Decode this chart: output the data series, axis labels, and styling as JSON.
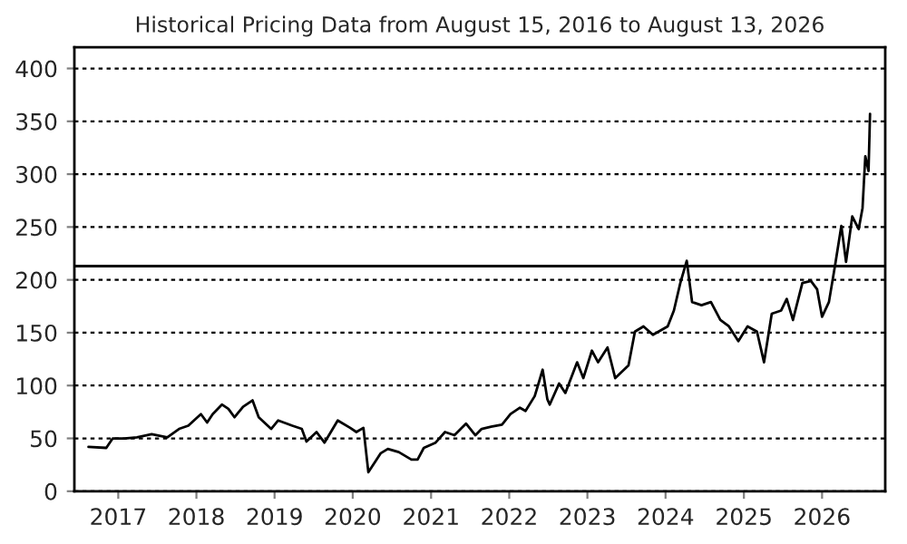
{
  "chart_data": {
    "type": "line",
    "title": "Historical Pricing Data from August 15, 2016 to August 13, 2026",
    "x": [
      "2016-08-15",
      "2016-11-06",
      "2016-12-06",
      "2017-01-30",
      "2017-03-29",
      "2017-06-06",
      "2017-08-18",
      "2017-10-12",
      "2017-11-24",
      "2018-01-22",
      "2018-02-20",
      "2018-03-18",
      "2018-04-30",
      "2018-05-30",
      "2018-06-28",
      "2018-08-07",
      "2018-09-20",
      "2018-10-19",
      "2018-12-16",
      "2019-01-18",
      "2019-03-25",
      "2019-05-08",
      "2019-05-30",
      "2019-07-16",
      "2019-08-22",
      "2019-10-23",
      "2019-12-20",
      "2020-01-18",
      "2020-02-20",
      "2020-03-14",
      "2020-05-11",
      "2020-06-13",
      "2020-08-03",
      "2020-10-01",
      "2020-10-30",
      "2020-11-28",
      "2021-01-22",
      "2021-03-07",
      "2021-04-20",
      "2021-06-13",
      "2021-07-27",
      "2021-08-25",
      "2021-10-08",
      "2021-11-28",
      "2022-01-07",
      "2022-02-20",
      "2022-03-18",
      "2022-04-30",
      "2022-06-06",
      "2022-06-28",
      "2022-07-09",
      "2022-08-22",
      "2022-09-20",
      "2022-11-14",
      "2022-12-13",
      "2023-01-22",
      "2023-02-20",
      "2023-04-05",
      "2023-05-11",
      "2023-07-12",
      "2023-08-11",
      "2023-09-20",
      "2023-11-03",
      "2023-12-16",
      "2024-01-11",
      "2024-02-09",
      "2024-03-10",
      "2024-04-09",
      "2024-05-04",
      "2024-06-17",
      "2024-07-31",
      "2024-09-13",
      "2024-10-23",
      "2024-12-06",
      "2025-01-18",
      "2025-03-03",
      "2025-04-05",
      "2025-05-11",
      "2025-06-24",
      "2025-07-20",
      "2025-08-18",
      "2025-10-01",
      "2025-11-10",
      "2025-12-09",
      "2026-01-01",
      "2026-02-02",
      "2026-03-03",
      "2026-04-01",
      "2026-04-23",
      "2026-05-22",
      "2026-06-21",
      "2026-07-09",
      "2026-07-22",
      "2026-08-06",
      "2026-08-13"
    ],
    "series": [
      {
        "color": "#000000",
        "values": [
          42,
          41,
          50,
          50,
          51,
          54,
          51,
          59,
          62,
          73,
          65,
          73,
          82,
          78,
          70,
          80,
          86,
          70,
          59,
          67,
          62,
          59,
          47,
          56,
          46,
          67,
          60,
          56,
          60,
          18,
          36,
          40,
          37,
          30,
          30,
          41,
          46,
          56,
          53,
          64,
          53,
          59,
          61,
          63,
          73,
          79,
          76,
          90,
          115,
          87,
          82,
          102,
          93,
          122,
          107,
          133,
          122,
          136,
          107,
          119,
          151,
          156,
          148,
          153,
          156,
          171,
          197,
          218,
          179,
          176,
          179,
          162,
          156,
          142,
          156,
          151,
          122,
          168,
          171,
          182,
          162,
          197,
          199,
          191,
          165,
          179,
          214,
          251,
          217,
          260,
          248,
          268,
          317,
          303,
          357
        ]
      }
    ],
    "xlim": [
      "2016-06-10",
      "2026-10-23"
    ],
    "xticks": [
      "2017",
      "2018",
      "2019",
      "2020",
      "2021",
      "2022",
      "2023",
      "2024",
      "2025",
      "2026"
    ],
    "ylim": [
      0,
      420
    ],
    "yticks": [
      0,
      50,
      100,
      150,
      200,
      250,
      300,
      350,
      400
    ],
    "ref_lines": [
      {
        "axis": "y",
        "value": 213,
        "color": "#000000",
        "line_style": "solid"
      }
    ],
    "grid": "y",
    "line_style": "solid",
    "marker": "none",
    "legend": false
  }
}
